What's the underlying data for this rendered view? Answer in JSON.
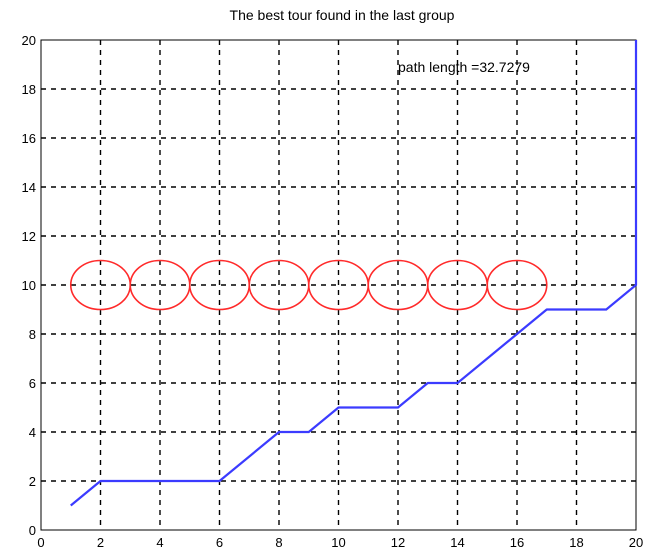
{
  "chart_data": {
    "type": "line",
    "title": "The best tour found in the last group",
    "xlabel": "",
    "ylabel": "",
    "xlim": [
      0,
      20
    ],
    "ylim": [
      0,
      20
    ],
    "xticks": [
      "0",
      "2",
      "4",
      "6",
      "8",
      "10",
      "12",
      "14",
      "16",
      "18",
      "20"
    ],
    "yticks": [
      "0",
      "2",
      "4",
      "6",
      "8",
      "10",
      "12",
      "14",
      "16",
      "18",
      "20"
    ],
    "grid": true,
    "annotation": "path length =32.7279",
    "series": [
      {
        "type": "line",
        "color": "#3b3bff",
        "x": [
          1,
          2,
          6,
          8,
          9,
          10,
          12,
          13,
          14,
          15,
          16,
          17,
          19,
          20,
          20
        ],
        "y": [
          1,
          2,
          2,
          4,
          4,
          5,
          5,
          6,
          6,
          7,
          8,
          9,
          9,
          10,
          20
        ]
      }
    ],
    "circles": {
      "color": "#ff2a2a",
      "y": 10,
      "radius": 1,
      "centers_x": [
        2,
        4,
        6,
        8,
        10,
        12,
        14,
        16
      ]
    }
  }
}
